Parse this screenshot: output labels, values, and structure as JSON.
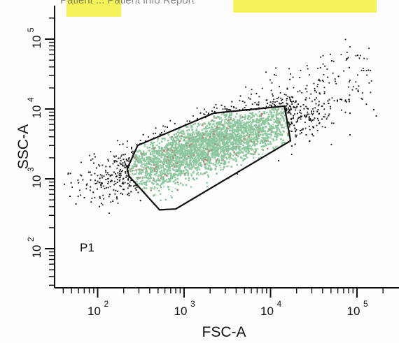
{
  "colors": {
    "background": "#fdfdfb",
    "highlight": "#f2ee3c",
    "gated_events": "#8cc7a0",
    "ungated_events": "#151515",
    "axes": "#111111"
  },
  "header_fragment_text": "Patient ... Patient info Report",
  "chart_data": {
    "type": "scatter",
    "title": "",
    "xlabel": "FSC-A",
    "ylabel": "SSC-A",
    "x_scale": "log",
    "y_scale": "log",
    "xlim": [
      15,
      200000
    ],
    "ylim": [
      20,
      100000
    ],
    "grid": false,
    "x_ticks": [
      {
        "value": 100,
        "base": "10",
        "exp": "2"
      },
      {
        "value": 1000,
        "base": "10",
        "exp": "3"
      },
      {
        "value": 10000,
        "base": "10",
        "exp": "4"
      },
      {
        "value": 100000,
        "base": "10",
        "exp": "5"
      }
    ],
    "y_ticks": [
      {
        "value": 100,
        "base": "10",
        "exp": "2"
      },
      {
        "value": 1000,
        "base": "10",
        "exp": "3"
      },
      {
        "value": 10000,
        "base": "10",
        "exp": "4"
      },
      {
        "value": 100000,
        "base": "10",
        "exp": "5"
      }
    ],
    "gate": {
      "name": "P1",
      "polygon": [
        [
          220,
          1400
        ],
        [
          290,
          3000
        ],
        [
          2200,
          8700
        ],
        [
          14500,
          11000
        ],
        [
          17000,
          3500
        ],
        [
          800,
          370
        ],
        [
          520,
          360
        ],
        [
          230,
          1100
        ]
      ]
    },
    "population": {
      "description_points": "approximate event clusters",
      "main_cluster_center": [
        1800,
        3000
      ],
      "outliers_upper_right": [
        [
          50000,
          50000
        ],
        [
          80000,
          40000
        ],
        [
          100000,
          60000
        ],
        [
          60000,
          30000
        ]
      ]
    }
  }
}
